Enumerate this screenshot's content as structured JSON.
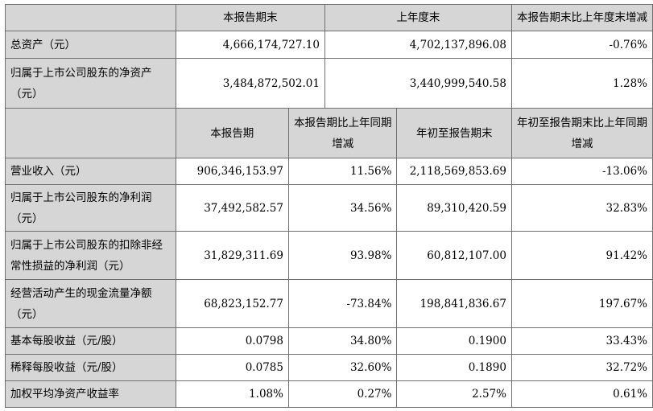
{
  "top_header": {
    "col1": "本报告期末",
    "col2": "上年度末",
    "col3": "本报告期末比上年度末增减"
  },
  "top_rows": [
    {
      "label": "总资产（元）",
      "v1": "4,666,174,727.10",
      "v2": "4,702,137,896.08",
      "v3": "-0.76%"
    },
    {
      "label": "归属于上市公司股东的净资产（元）",
      "v1": "3,484,872,502.01",
      "v2": "3,440,999,540.58",
      "v3": "1.28%"
    }
  ],
  "bottom_header": {
    "col1": "本报告期",
    "col2": "本报告期比上年同期增减",
    "col3": "年初至报告期末",
    "col4": "年初至报告期末比上年同期增减"
  },
  "bottom_rows": [
    {
      "label": "营业收入（元）",
      "v1": "906,346,153.97",
      "v2": "11.56%",
      "v3": "2,118,569,853.69",
      "v4": "-13.06%"
    },
    {
      "label": "归属于上市公司股东的净利润（元）",
      "v1": "37,492,582.57",
      "v2": "34.56%",
      "v3": "89,310,420.59",
      "v4": "32.83%"
    },
    {
      "label": "归属于上市公司股东的扣除非经常性损益的净利润（元）",
      "v1": "31,829,311.69",
      "v2": "93.98%",
      "v3": "60,812,107.00",
      "v4": "91.42%"
    },
    {
      "label": "经营活动产生的现金流量净额（元）",
      "v1": "68,823,152.77",
      "v2": "-73.84%",
      "v3": "198,841,836.67",
      "v4": "197.67%"
    },
    {
      "label": "基本每股收益（元/股）",
      "v1": "0.0798",
      "v2": "34.80%",
      "v3": "0.1900",
      "v4": "33.43%"
    },
    {
      "label": "稀释每股收益（元/股）",
      "v1": "0.0785",
      "v2": "32.60%",
      "v3": "0.1890",
      "v4": "32.72%"
    },
    {
      "label": "加权平均净资产收益率",
      "v1": "1.08%",
      "v2": "0.27%",
      "v3": "2.57%",
      "v4": "0.61%"
    }
  ]
}
